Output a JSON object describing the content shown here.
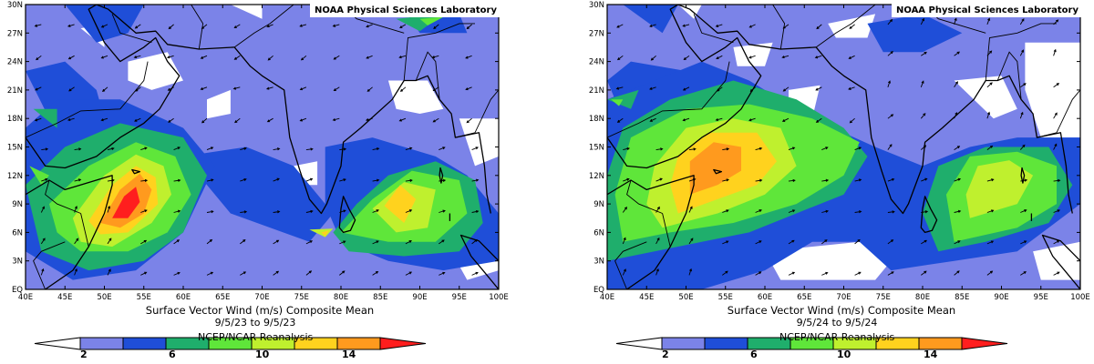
{
  "colors": {
    "c1": "#ffffff",
    "c2": "#7b83e8",
    "c3": "#1f4ed8",
    "c4": "#1fae6c",
    "c5": "#5fe63a",
    "c6": "#bff02e",
    "c7": "#ffd21e",
    "c8": "#ff9a1e",
    "c9": "#ff1e1e"
  },
  "x_ticks": [
    "40E",
    "45E",
    "50E",
    "55E",
    "60E",
    "65E",
    "70E",
    "75E",
    "80E",
    "85E",
    "90E",
    "95E",
    "100E"
  ],
  "y_ticks": [
    "EQ",
    "3N",
    "6N",
    "9N",
    "12N",
    "15N",
    "18N",
    "21N",
    "24N",
    "27N",
    "30N"
  ],
  "colorbar_labels": [
    "2",
    "6",
    "10",
    "14"
  ],
  "panels": [
    {
      "credit": "NOAA Physical Sciences Laboratory",
      "caption": "Surface Vector Wind (m/s) Composite Mean",
      "dates": "9/5/23  to 9/5/23",
      "reanalysis": "NCEP/NCAR Reanalysis"
    },
    {
      "credit": "NOAA Physical Sciences Laboratory",
      "caption": "Surface Vector Wind (m/s) Composite Mean",
      "dates": "9/5/24  to 9/5/24",
      "reanalysis": "NCEP/NCAR Reanalysis"
    }
  ]
}
